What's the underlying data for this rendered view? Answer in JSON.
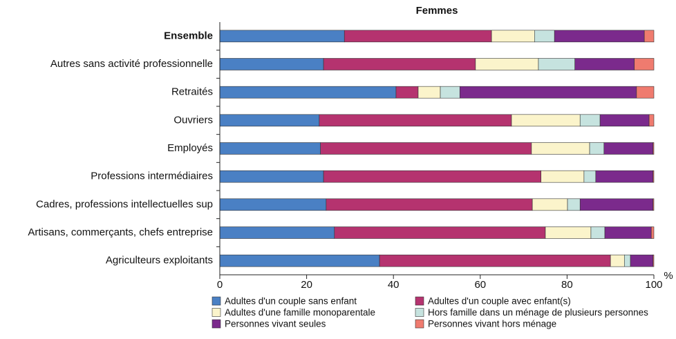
{
  "chart_data": {
    "type": "stacked_barh",
    "title": "Femmes",
    "xlabel": "%",
    "categories": [
      "Ensemble",
      "Autres sans activité professionnelle",
      "Retraités",
      "Ouvriers",
      "Employés",
      "Professions intermédiaires",
      "Cadres, professions intellectuelles sup",
      "Artisans, commerçants, chefs entreprise",
      "Agriculteurs exploitants"
    ],
    "series": [
      {
        "name": "Adultes d'un couple sans enfant",
        "color": "#4a80c4",
        "values": [
          28.7,
          23.9,
          40.6,
          22.9,
          23.2,
          23.9,
          24.5,
          26.4,
          36.8
        ]
      },
      {
        "name": "Adultes d'un couple avec enfant(s)",
        "color": "#b5336f",
        "values": [
          33.9,
          35.0,
          5.1,
          44.3,
          48.6,
          50.1,
          47.5,
          48.6,
          53.2
        ]
      },
      {
        "name": "Adultes d'une famille monoparentale",
        "color": "#fbf4cb",
        "values": [
          9.9,
          14.5,
          5.1,
          15.8,
          13.4,
          9.9,
          8.1,
          10.5,
          3.2
        ]
      },
      {
        "name": "Hors famille dans un ménage de plusieurs personnes",
        "color": "#c6e3df",
        "values": [
          4.6,
          8.4,
          4.5,
          4.6,
          3.3,
          2.7,
          2.9,
          3.2,
          1.4
        ]
      },
      {
        "name": "Personnes vivant seules",
        "color": "#7b2a8c",
        "values": [
          20.7,
          13.7,
          40.7,
          11.3,
          11.3,
          13.2,
          16.8,
          10.7,
          5.2
        ]
      },
      {
        "name": "Personnes vivant hors ménage",
        "color": "#ef7b6f",
        "values": [
          2.2,
          4.5,
          4.0,
          1.1,
          0.2,
          0.2,
          0.2,
          0.6,
          0.2
        ]
      }
    ],
    "xlim": [
      0,
      100
    ],
    "xticks": [
      0,
      20,
      40,
      60,
      80,
      100
    ]
  }
}
